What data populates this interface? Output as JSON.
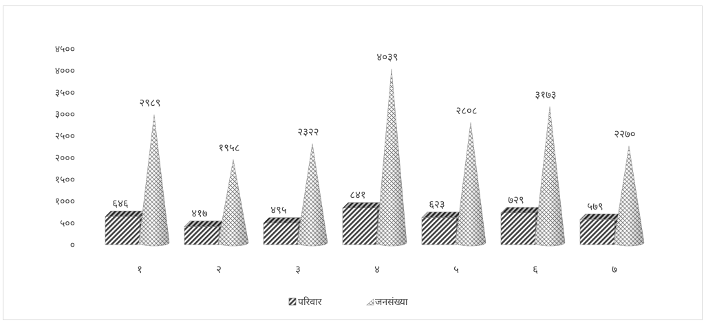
{
  "chart_data": {
    "type": "bar",
    "title": "",
    "xlabel": "",
    "ylabel": "",
    "ylim": [
      0,
      4500
    ],
    "yticks": [
      "०",
      "५००",
      "१०००",
      "१५००",
      "२०००",
      "२५००",
      "३०००",
      "३५००",
      "४०००",
      "४५००"
    ],
    "ytick_values": [
      0,
      500,
      1000,
      1500,
      2000,
      2500,
      3000,
      3500,
      4000,
      4500
    ],
    "categories": [
      "१",
      "२",
      "३",
      "४",
      "५",
      "६",
      "७"
    ],
    "series": [
      {
        "name": "परिवार",
        "values": [
          646,
          417,
          495,
          841,
          623,
          729,
          579
        ],
        "labels": [
          "६४६",
          "४१७",
          "४९५",
          "८४१",
          "६२३",
          "७२९",
          "५७९"
        ],
        "color": "#595959",
        "shape": "box",
        "pattern": "diagonal-stripes"
      },
      {
        "name": "जनसंख्या",
        "values": [
          2989,
          1958,
          2322,
          4039,
          2808,
          3173,
          2270
        ],
        "labels": [
          "२९८९",
          "१९५८",
          "२३२२",
          "४०३९",
          "२८०८",
          "३१७३",
          "२२७०"
        ],
        "color": "#8c8c8c",
        "shape": "cone",
        "pattern": "weave"
      }
    ],
    "legend": "bottom",
    "grid": false
  }
}
